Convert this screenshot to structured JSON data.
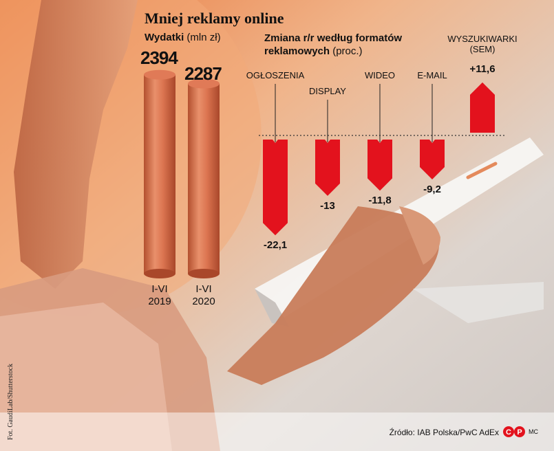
{
  "title": "Mniej reklamy online",
  "spending": {
    "label_bold": "Wydatki",
    "label_unit": "(mln zł)"
  },
  "change": {
    "label_bold": "Zmiana r/r według formatów reklamowych",
    "label_unit": "(proc.)"
  },
  "source": "Źródło: IAB Polska/PwC AdEx",
  "photo_credit": "Fot. GaudiLab/Shutterstock",
  "author": "MC",
  "logo_text": "CP",
  "colors": {
    "cylinder": "#d8714f",
    "bar": "#e3121d",
    "accent": "#e3121d"
  },
  "chart_data": [
    {
      "type": "bar",
      "ylabel": "Wydatki (mln zł)",
      "categories": [
        "I-VI 2019",
        "I-VI 2020"
      ],
      "category_lines": [
        [
          "I-VI",
          "2019"
        ],
        [
          "I-VI",
          "2020"
        ]
      ],
      "values": [
        2394,
        2287
      ],
      "value_labels": [
        "2394",
        "2287"
      ]
    },
    {
      "type": "bar",
      "title": "Zmiana r/r według formatów reklamowych (proc.)",
      "categories": [
        "OGŁOSZENIA",
        "DISPLAY",
        "WIDEO",
        "E-MAIL",
        "WYSZUKIWARKI (SEM)"
      ],
      "values": [
        -22.1,
        -13,
        -11.8,
        -9.2,
        11.6
      ],
      "value_labels": [
        "-22,1",
        "-13",
        "-11,8",
        "-9,2",
        "+11,6"
      ]
    }
  ]
}
